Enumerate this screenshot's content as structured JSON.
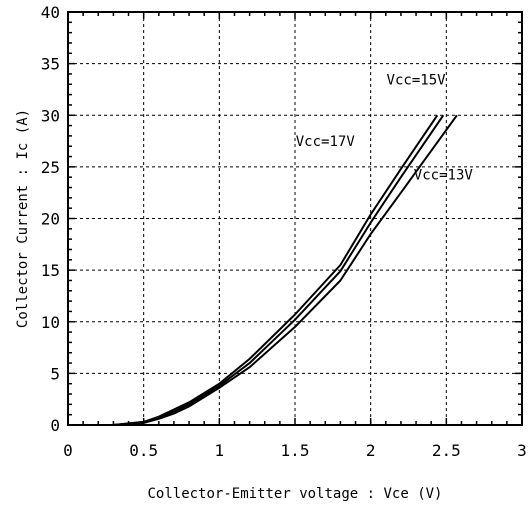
{
  "chart_data": {
    "type": "line",
    "xlabel": "Collector-Emitter voltage : Vce  (V)",
    "ylabel": "Collector Current : Ic  (A)",
    "xlim": [
      0,
      3
    ],
    "ylim": [
      0,
      40
    ],
    "x_ticks": [
      0,
      0.5,
      1,
      1.5,
      2,
      2.5,
      3
    ],
    "x_tick_labels": [
      "0",
      "0.5",
      "1",
      "1.5",
      "2",
      "2.5",
      "3"
    ],
    "y_ticks": [
      0,
      5,
      10,
      15,
      20,
      25,
      30,
      35,
      40
    ],
    "y_tick_labels": [
      "0",
      "5",
      "10",
      "15",
      "20",
      "25",
      "30",
      "35",
      "40"
    ],
    "grid": true,
    "series": [
      {
        "name": "Vcc=17V",
        "x": [
          0.3,
          0.5,
          0.6,
          0.7,
          0.8,
          1.0,
          1.2,
          1.5,
          1.8,
          2.0,
          2.2,
          2.44
        ],
        "y": [
          0,
          0.3,
          0.8,
          1.5,
          2.2,
          4.0,
          6.4,
          10.7,
          15.5,
          20.4,
          24.8,
          30
        ]
      },
      {
        "name": "Vcc=15V",
        "x": [
          0.3,
          0.5,
          0.6,
          0.7,
          0.8,
          1.0,
          1.2,
          1.5,
          1.8,
          2.0,
          2.2,
          2.48
        ],
        "y": [
          0,
          0.3,
          0.7,
          1.3,
          2.0,
          3.8,
          6.0,
          10.2,
          14.9,
          19.6,
          24.0,
          30
        ]
      },
      {
        "name": "Vcc=13V",
        "x": [
          0.3,
          0.5,
          0.6,
          0.7,
          0.8,
          1.0,
          1.2,
          1.5,
          1.8,
          2.0,
          2.2,
          2.57
        ],
        "y": [
          0,
          0.2,
          0.6,
          1.1,
          1.8,
          3.6,
          5.6,
          9.5,
          14.0,
          18.5,
          22.5,
          30
        ]
      }
    ],
    "annotations": [
      {
        "series": "Vcc=17V",
        "text": "Vcc=17V",
        "x": 1.7,
        "y": 27
      },
      {
        "series": "Vcc=15V",
        "text": "Vcc=15V",
        "x": 2.3,
        "y": 33
      },
      {
        "series": "Vcc=13V",
        "text": "Vcc=13V",
        "x": 2.48,
        "y": 23.8
      }
    ]
  }
}
